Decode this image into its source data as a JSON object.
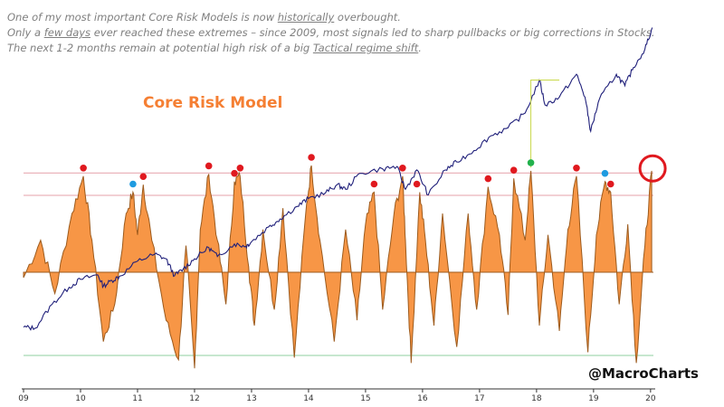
{
  "annotation": {
    "line1": {
      "pre": "One of my most important Core Risk Models is now ",
      "em": "historically",
      "post": " overbought."
    },
    "line2": {
      "pre": "Only a ",
      "em": "few days",
      "post": " ever reached these extremes – since 2009, most signals led to sharp pullbacks or big corrections in Stocks."
    },
    "line3": {
      "pre": "The next 1-2 months remain at potential high risk of a big ",
      "em": "Tactical regime shift",
      "post": "."
    }
  },
  "watermark": "@MacroCharts",
  "chart_data": {
    "type": "area",
    "title": "Core Risk Model",
    "xlabel": "",
    "ylabel": "",
    "x_ticks": [
      "09",
      "10",
      "11",
      "12",
      "13",
      "14",
      "15",
      "16",
      "17",
      "18",
      "19",
      "20"
    ],
    "xlim": [
      2009.0,
      2020.05
    ],
    "ylim": [
      -1.0,
      1.0
    ],
    "grid": false,
    "colors": {
      "area_fill": "#f79646",
      "area_stroke": "#9c5a1c",
      "price_line": "#1f1f7a",
      "upper_band": "#e6a0a8",
      "lower_band": "#8fcf9f",
      "marker_red": "#e0191f",
      "marker_blue": "#1f9be0",
      "marker_green": "#22b14c",
      "connector": "#c8d84a",
      "highlight_circle": "#e0191f"
    },
    "bands": {
      "upper_extreme": 0.93,
      "upper": 0.72,
      "lower": -0.78
    },
    "series": [
      {
        "values": [
          [
            2009.0,
            -0.05
          ],
          [
            2009.3,
            0.3
          ],
          [
            2009.55,
            -0.2
          ],
          [
            2009.85,
            0.55
          ],
          [
            2010.05,
            0.9
          ],
          [
            2010.2,
            0.3
          ],
          [
            2010.4,
            -0.65
          ],
          [
            2010.6,
            -0.3
          ],
          [
            2010.8,
            0.55
          ],
          [
            2010.92,
            0.75
          ],
          [
            2011.0,
            0.35
          ],
          [
            2011.1,
            0.82
          ],
          [
            2011.25,
            0.3
          ],
          [
            2011.5,
            -0.45
          ],
          [
            2011.72,
            -0.82
          ],
          [
            2011.85,
            0.25
          ],
          [
            2012.0,
            -0.9
          ],
          [
            2012.1,
            0.4
          ],
          [
            2012.25,
            0.92
          ],
          [
            2012.4,
            0.3
          ],
          [
            2012.55,
            -0.3
          ],
          [
            2012.7,
            0.85
          ],
          [
            2012.8,
            0.9
          ],
          [
            2012.95,
            0.05
          ],
          [
            2013.05,
            -0.5
          ],
          [
            2013.2,
            0.4
          ],
          [
            2013.4,
            -0.35
          ],
          [
            2013.55,
            0.6
          ],
          [
            2013.75,
            -0.8
          ],
          [
            2013.95,
            0.55
          ],
          [
            2014.05,
            1.0
          ],
          [
            2014.2,
            0.3
          ],
          [
            2014.45,
            -0.65
          ],
          [
            2014.65,
            0.4
          ],
          [
            2014.85,
            -0.45
          ],
          [
            2015.0,
            0.45
          ],
          [
            2015.15,
            0.75
          ],
          [
            2015.3,
            -0.35
          ],
          [
            2015.5,
            0.55
          ],
          [
            2015.65,
            0.9
          ],
          [
            2015.7,
            0.3
          ],
          [
            2015.8,
            -0.85
          ],
          [
            2015.95,
            0.75
          ],
          [
            2016.05,
            0.3
          ],
          [
            2016.2,
            -0.5
          ],
          [
            2016.35,
            0.55
          ],
          [
            2016.6,
            -0.7
          ],
          [
            2016.8,
            0.55
          ],
          [
            2016.95,
            -0.35
          ],
          [
            2017.15,
            0.8
          ],
          [
            2017.35,
            0.35
          ],
          [
            2017.5,
            -0.4
          ],
          [
            2017.6,
            0.88
          ],
          [
            2017.8,
            0.3
          ],
          [
            2017.9,
            0.95
          ],
          [
            2018.05,
            -0.5
          ],
          [
            2018.2,
            0.35
          ],
          [
            2018.4,
            -0.55
          ],
          [
            2018.55,
            0.4
          ],
          [
            2018.7,
            0.9
          ],
          [
            2018.9,
            -0.75
          ],
          [
            2019.05,
            0.35
          ],
          [
            2019.2,
            0.85
          ],
          [
            2019.3,
            0.75
          ],
          [
            2019.45,
            -0.3
          ],
          [
            2019.6,
            0.45
          ],
          [
            2019.75,
            -0.85
          ],
          [
            2019.9,
            0.25
          ],
          [
            2020.02,
            0.95
          ]
        ]
      },
      {
        "values": [
          [
            2009.0,
            700
          ],
          [
            2009.2,
            690
          ],
          [
            2009.5,
            900
          ],
          [
            2009.8,
            1050
          ],
          [
            2010.0,
            1120
          ],
          [
            2010.3,
            1160
          ],
          [
            2010.4,
            1060
          ],
          [
            2010.55,
            1110
          ],
          [
            2010.7,
            1150
          ],
          [
            2011.0,
            1280
          ],
          [
            2011.3,
            1340
          ],
          [
            2011.5,
            1300
          ],
          [
            2011.65,
            1150
          ],
          [
            2011.8,
            1210
          ],
          [
            2012.0,
            1300
          ],
          [
            2012.25,
            1400
          ],
          [
            2012.4,
            1320
          ],
          [
            2012.7,
            1430
          ],
          [
            2012.9,
            1410
          ],
          [
            2013.0,
            1450
          ],
          [
            2013.3,
            1580
          ],
          [
            2013.5,
            1650
          ],
          [
            2013.8,
            1760
          ],
          [
            2014.0,
            1830
          ],
          [
            2014.3,
            1880
          ],
          [
            2014.5,
            1950
          ],
          [
            2014.65,
            1910
          ],
          [
            2014.9,
            2050
          ],
          [
            2015.3,
            2090
          ],
          [
            2015.55,
            2110
          ],
          [
            2015.7,
            1910
          ],
          [
            2015.9,
            2080
          ],
          [
            2016.1,
            1860
          ],
          [
            2016.4,
            2080
          ],
          [
            2016.6,
            2150
          ],
          [
            2016.9,
            2250
          ],
          [
            2017.2,
            2380
          ],
          [
            2017.5,
            2450
          ],
          [
            2017.8,
            2580
          ],
          [
            2018.05,
            2870
          ],
          [
            2018.15,
            2650
          ],
          [
            2018.4,
            2720
          ],
          [
            2018.7,
            2920
          ],
          [
            2018.85,
            2720
          ],
          [
            2018.95,
            2420
          ],
          [
            2019.1,
            2700
          ],
          [
            2019.4,
            2920
          ],
          [
            2019.55,
            2820
          ],
          [
            2019.7,
            2980
          ],
          [
            2019.9,
            3140
          ],
          [
            2020.03,
            3330
          ]
        ]
      }
    ],
    "markers": [
      {
        "x": 2010.05,
        "color": "red"
      },
      {
        "x": 2010.92,
        "color": "blue"
      },
      {
        "x": 2011.1,
        "color": "red"
      },
      {
        "x": 2012.25,
        "color": "red"
      },
      {
        "x": 2012.7,
        "color": "red"
      },
      {
        "x": 2012.8,
        "color": "red"
      },
      {
        "x": 2014.05,
        "color": "red"
      },
      {
        "x": 2015.15,
        "color": "red"
      },
      {
        "x": 2015.65,
        "color": "red"
      },
      {
        "x": 2015.9,
        "color": "red"
      },
      {
        "x": 2017.15,
        "color": "red"
      },
      {
        "x": 2017.6,
        "color": "red"
      },
      {
        "x": 2017.9,
        "color": "green"
      },
      {
        "x": 2018.7,
        "color": "red"
      },
      {
        "x": 2019.2,
        "color": "blue"
      },
      {
        "x": 2019.3,
        "color": "red"
      }
    ],
    "highlight": {
      "x": 2020.02
    }
  }
}
